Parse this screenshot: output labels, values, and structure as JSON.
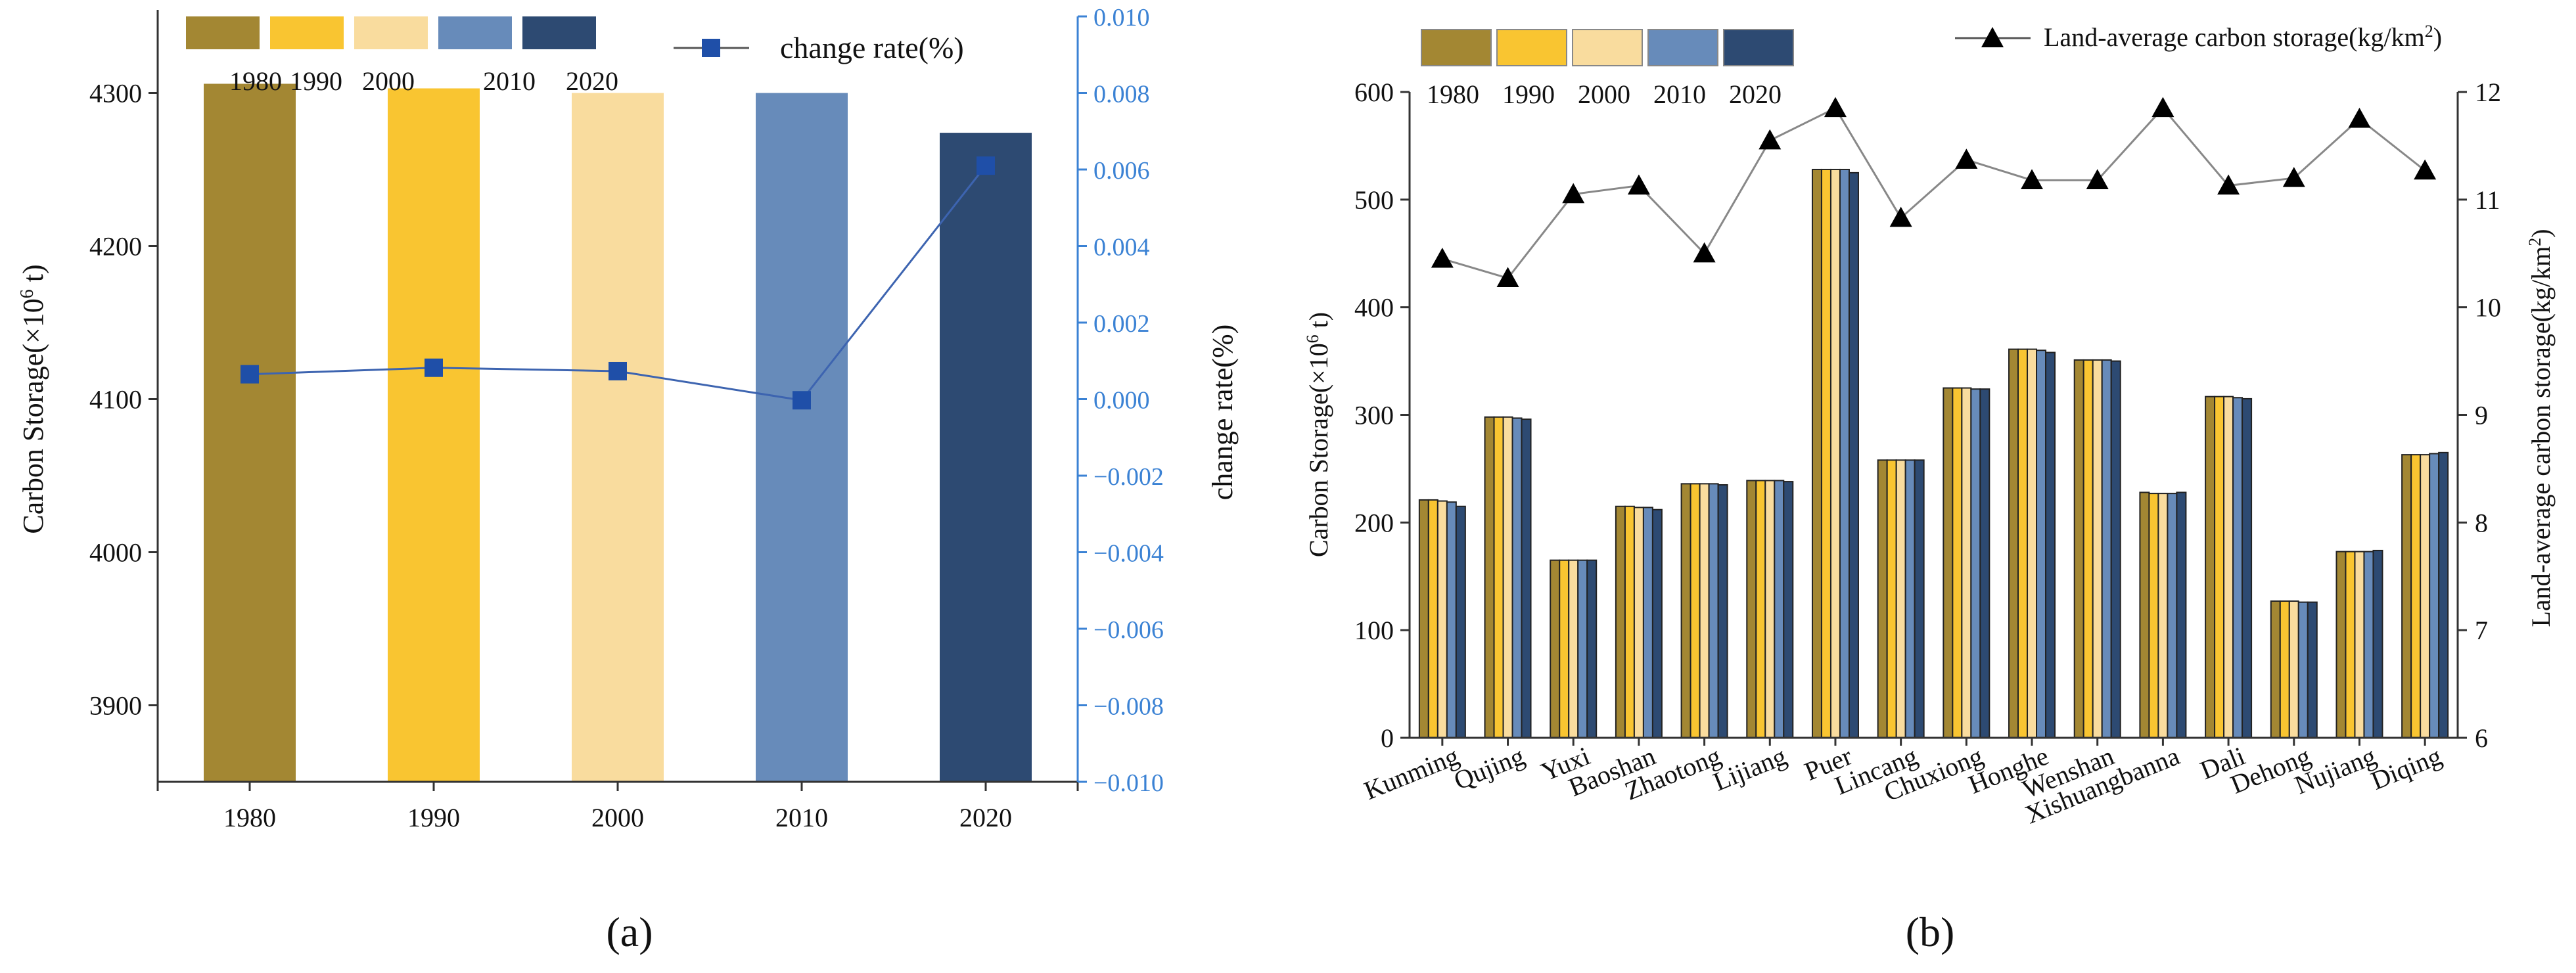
{
  "chart_data": [
    {
      "panel_label": "(a)",
      "type": "bar",
      "categories": [
        "1980",
        "1990",
        "2000",
        "2010",
        "2020"
      ],
      "values": [
        4306,
        4303,
        4300,
        4300,
        4274
      ],
      "colors": [
        "#A38733",
        "#F9C531",
        "#F9DC9E",
        "#678BBA",
        "#2D4A72"
      ],
      "ylabel_main": "Carbon Storage(×10",
      "ylabel_sup": "6",
      "ylabel_end": " t)",
      "ylim": [
        3850,
        4350
      ],
      "yticks": [
        "3900",
        "4000",
        "4100",
        "4200",
        "4300"
      ],
      "xlabel": "",
      "legend_labels": [
        "1980",
        "1990",
        "2000",
        "2010",
        "2020"
      ],
      "line_series": {
        "name": "change rate(%)",
        "values": [
          0.00065,
          0.00082,
          0.00073,
          -3e-05,
          0.0061
        ],
        "color": "#1F4FA8",
        "axis_color": "#3B82D4",
        "ylabel": "change rate(%)",
        "ylim": [
          -0.01,
          0.01
        ],
        "yticks": [
          "−0.010",
          "−0.008",
          "−0.006",
          "−0.004",
          "−0.002",
          "0.000",
          "0.002",
          "0.004",
          "0.006",
          "0.008",
          "0.010"
        ]
      }
    },
    {
      "panel_label": "(b)",
      "type": "bar",
      "categories": [
        "Kunming",
        "Qujing",
        "Yuxi",
        "Baoshan",
        "Zhaotong",
        "Lijiang",
        "Puer",
        "Lincang",
        "Chuxiong",
        "Honghe",
        "Wenshan",
        "Xishuangbanna",
        "Dali",
        "Dehong",
        "Nujiang",
        "Diqing"
      ],
      "series": [
        {
          "name": "1980",
          "color": "#A38733",
          "values": [
            221,
            298,
            165,
            215,
            236,
            239,
            528,
            258,
            325,
            361,
            351,
            228,
            317,
            127,
            173,
            263
          ]
        },
        {
          "name": "1990",
          "color": "#F9C531",
          "values": [
            221,
            298,
            165,
            215,
            236,
            239,
            528,
            258,
            325,
            361,
            351,
            227,
            317,
            127,
            173,
            263
          ]
        },
        {
          "name": "2000",
          "color": "#F9DC9E",
          "values": [
            220,
            298,
            165,
            214,
            236,
            239,
            528,
            258,
            325,
            361,
            351,
            227,
            317,
            127,
            173,
            263
          ]
        },
        {
          "name": "2010",
          "color": "#678BBA",
          "values": [
            219,
            297,
            165,
            214,
            236,
            239,
            528,
            258,
            324,
            360,
            351,
            227,
            316,
            126,
            173,
            264
          ]
        },
        {
          "name": "2020",
          "color": "#2D4A72",
          "values": [
            215,
            296,
            165,
            212,
            235,
            238,
            525,
            258,
            324,
            358,
            350,
            228,
            315,
            126,
            174,
            265
          ]
        }
      ],
      "ylabel_main": "Carbon Storage(×10",
      "ylabel_sup": "6",
      "ylabel_end": " t)",
      "ylim": [
        0,
        600
      ],
      "yticks": [
        "0",
        "100",
        "200",
        "300",
        "400",
        "500",
        "600"
      ],
      "legend_labels": [
        "1980",
        "1990",
        "2000",
        "2010",
        "2020"
      ],
      "line_series": {
        "name": "Land-average carbon storage(kg/km",
        "name_sup": "2",
        "name_end": ")",
        "values": [
          10.45,
          10.27,
          11.05,
          11.13,
          10.5,
          11.55,
          11.85,
          10.83,
          11.37,
          11.18,
          11.18,
          11.85,
          11.13,
          11.2,
          11.75,
          11.27
        ],
        "color": "#000000",
        "ylabel": "Land-average carbon storage(kg/km",
        "ylabel_sup": "2",
        "ylabel_end": ")",
        "ylim": [
          6,
          12
        ],
        "yticks": [
          "6",
          "7",
          "8",
          "9",
          "10",
          "11",
          "12"
        ]
      }
    }
  ]
}
